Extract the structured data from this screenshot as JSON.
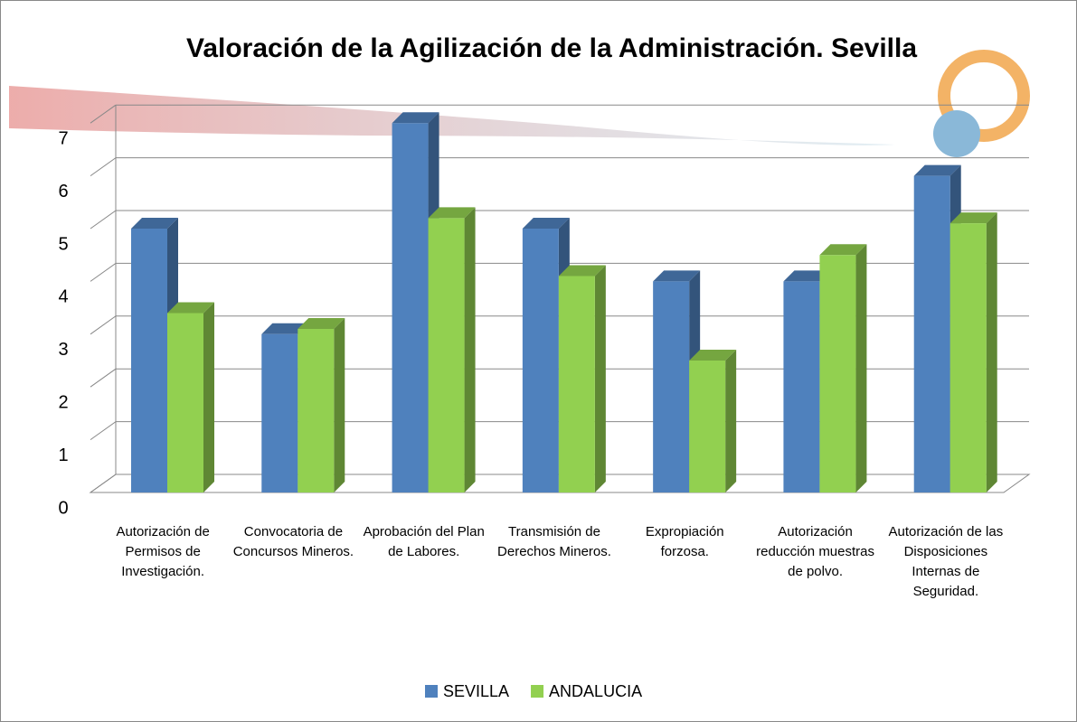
{
  "chart_data": {
    "type": "bar3d",
    "title": "Valoración de la Agilización de la Administración. Sevilla",
    "categories": [
      "Autorización de Permisos de Investigación.",
      "Convocatoria de Concursos Mineros.",
      "Aprobación del Plan de Labores.",
      "Transmisión de Derechos Mineros.",
      "Expropiación forzosa.",
      "Autorización reducción muestras de polvo.",
      "Autorización de las Disposiciones Internas de Seguridad."
    ],
    "series": [
      {
        "name": "SEVILLA",
        "color": "#4f81bd",
        "values": [
          5,
          3,
          7,
          5,
          4,
          4,
          6
        ]
      },
      {
        "name": "ANDALUCIA",
        "color": "#92d050",
        "values": [
          3.4,
          3.1,
          5.2,
          4.1,
          2.5,
          4.5,
          5.1
        ]
      }
    ],
    "ylim": [
      0,
      7
    ],
    "yticks": [
      0,
      1,
      2,
      3,
      4,
      5,
      6,
      7
    ],
    "grid": true,
    "legend": "bottom"
  }
}
